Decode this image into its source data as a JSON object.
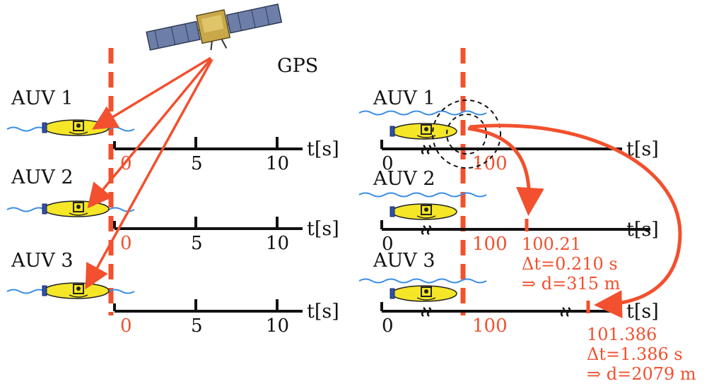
{
  "colors": {
    "accent_red": "#f2502e",
    "axis": "#111111",
    "water": "#3b8ee6",
    "auv_body": "#f5e628",
    "auv_nose": "#2f4fa8"
  },
  "icons": [
    "satellite-icon",
    "auv-icon",
    "wave-icon",
    "time-break-icon"
  ],
  "gps_label": "GPS",
  "left": {
    "auvs": [
      {
        "label": "AUV 1",
        "axis_unit": "t[s]",
        "ticks": [
          "0",
          "5",
          "10"
        ]
      },
      {
        "label": "AUV 2",
        "axis_unit": "t[s]",
        "ticks": [
          "0",
          "5",
          "10"
        ]
      },
      {
        "label": "AUV 3",
        "axis_unit": "t[s]",
        "ticks": [
          "0",
          "5",
          "10"
        ]
      }
    ]
  },
  "right": {
    "auvs": [
      {
        "label": "AUV 1",
        "axis_unit": "t[s]",
        "ticks": [
          "0",
          "100"
        ]
      },
      {
        "label": "AUV 2",
        "axis_unit": "t[s]",
        "ticks": [
          "0",
          "100"
        ],
        "arrival": {
          "time": "100.21",
          "delta": "Δt=0.210 s",
          "distance": "⇒ d=315 m"
        }
      },
      {
        "label": "AUV 3",
        "axis_unit": "t[s]",
        "ticks": [
          "0",
          "100"
        ],
        "arrival": {
          "time": "101.386",
          "delta": "Δt=1.386 s",
          "distance": "⇒ d=2079 m"
        }
      }
    ]
  }
}
